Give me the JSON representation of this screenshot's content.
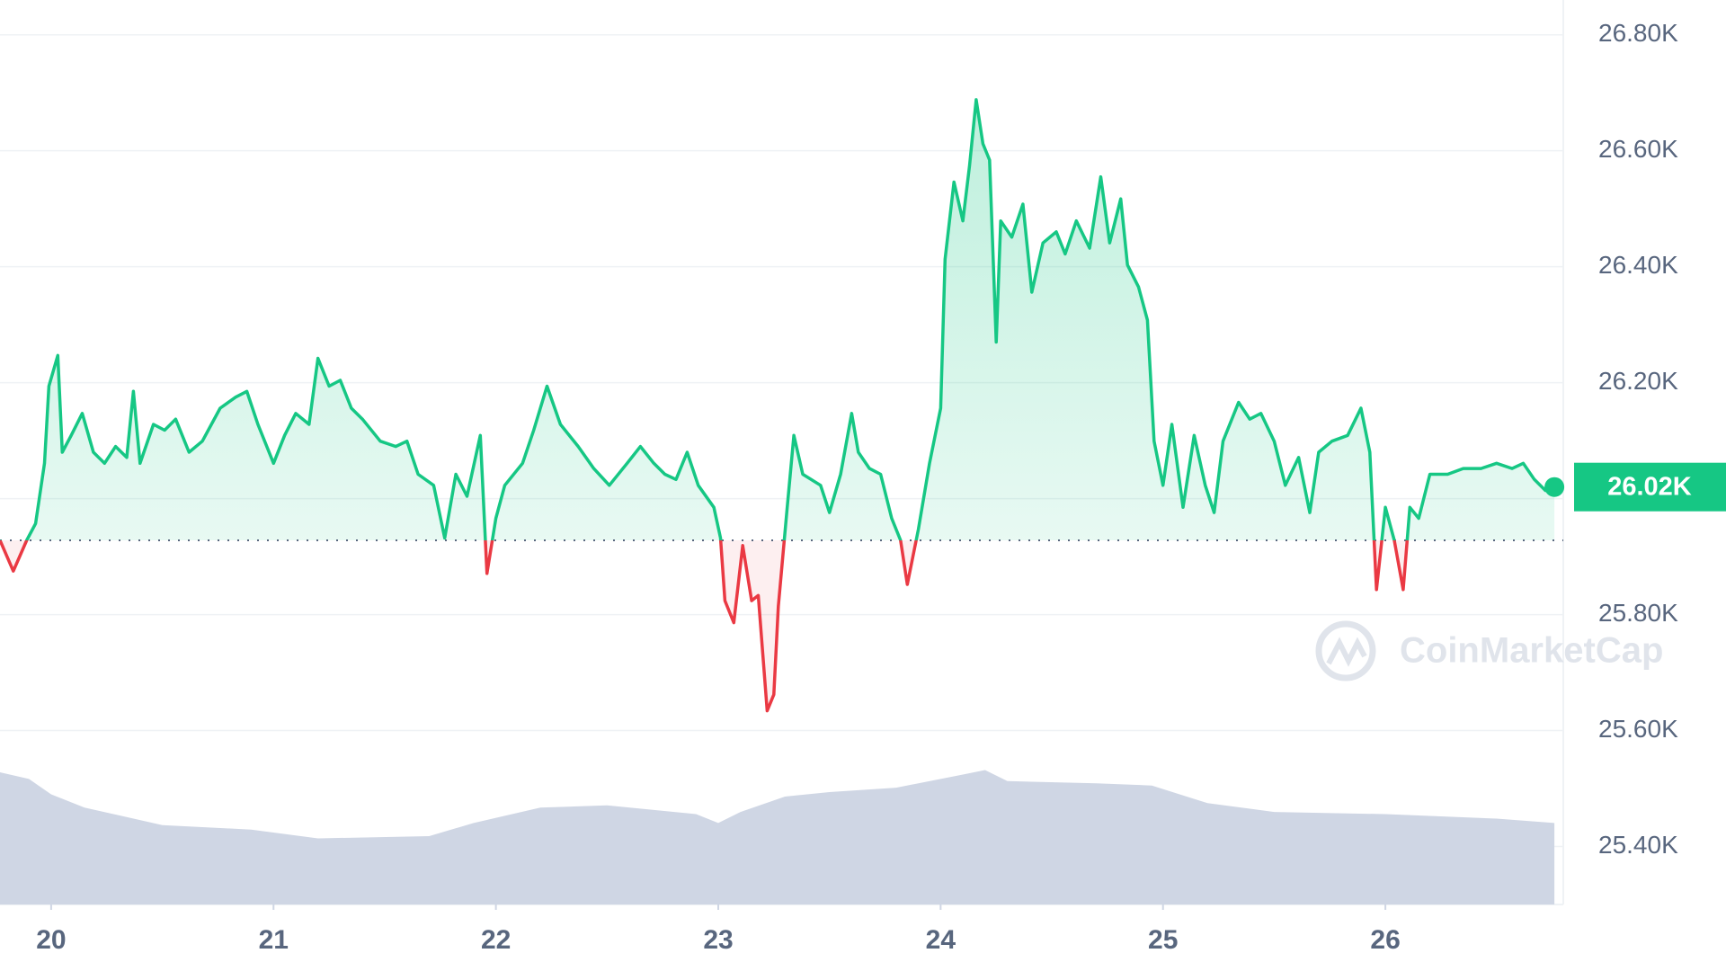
{
  "chart_data": {
    "type": "line",
    "x": [
      19.77,
      19.83,
      19.89,
      19.93,
      19.97,
      19.99,
      20.03,
      20.05,
      20.09,
      20.14,
      20.19,
      20.24,
      20.29,
      20.34,
      20.37,
      20.4,
      20.46,
      20.51,
      20.56,
      20.62,
      20.68,
      20.76,
      20.83,
      20.88,
      20.93,
      21.0,
      21.05,
      21.1,
      21.16,
      21.2,
      21.25,
      21.3,
      21.35,
      21.4,
      21.48,
      21.55,
      21.6,
      21.65,
      21.72,
      21.77,
      21.82,
      21.87,
      21.93,
      21.96,
      22.0,
      22.04,
      22.12,
      22.17,
      22.23,
      22.29,
      22.37,
      22.44,
      22.51,
      22.59,
      22.65,
      22.71,
      22.76,
      22.81,
      22.86,
      22.91,
      22.98,
      23.01,
      23.03,
      23.07,
      23.11,
      23.15,
      23.18,
      23.22,
      23.25,
      23.27,
      23.31,
      23.34,
      23.38,
      23.46,
      23.5,
      23.55,
      23.6,
      23.63,
      23.68,
      23.73,
      23.78,
      23.82,
      23.85,
      23.9,
      23.95,
      24.0,
      24.02,
      24.06,
      24.1,
      24.13,
      24.16,
      24.19,
      24.22,
      24.25,
      24.27,
      24.32,
      24.37,
      24.41,
      24.46,
      24.52,
      24.56,
      24.61,
      24.67,
      24.72,
      24.76,
      24.81,
      24.84,
      24.89,
      24.93,
      24.96,
      25.0,
      25.04,
      25.09,
      25.14,
      25.19,
      25.23,
      25.27,
      25.34,
      25.39,
      25.44,
      25.5,
      25.55,
      25.61,
      25.66,
      25.7,
      25.76,
      25.83,
      25.89,
      25.93,
      25.96,
      26.0,
      26.04,
      26.08,
      26.11,
      26.15,
      26.2,
      26.28,
      26.35,
      26.43,
      26.5,
      26.57,
      26.62,
      26.67,
      26.72,
      26.76
    ],
    "values": [
      25928,
      25875,
      25928,
      25957,
      26061,
      26194,
      26247,
      26080,
      26109,
      26147,
      26080,
      26061,
      26090,
      26071,
      26185,
      26061,
      26128,
      26118,
      26137,
      26080,
      26099,
      26156,
      26175,
      26185,
      26128,
      26061,
      26109,
      26147,
      26128,
      26242,
      26194,
      26204,
      26156,
      26137,
      26099,
      26090,
      26099,
      26042,
      26023,
      25932,
      26042,
      26004,
      26109,
      25871,
      25966,
      26023,
      26061,
      26118,
      26194,
      26128,
      26090,
      26052,
      26023,
      26061,
      26090,
      26061,
      26042,
      26033,
      26080,
      26023,
      25985,
      25932,
      25824,
      25786,
      25919,
      25824,
      25833,
      25634,
      25662,
      25814,
      25985,
      26109,
      26042,
      26023,
      25976,
      26042,
      26147,
      26080,
      26052,
      26042,
      25966,
      25928,
      25852,
      25947,
      26061,
      26156,
      26413,
      26546,
      26479,
      26574,
      26688,
      26612,
      26584,
      26270,
      26479,
      26451,
      26508,
      26356,
      26441,
      26460,
      26422,
      26479,
      26432,
      26555,
      26441,
      26517,
      26403,
      26365,
      26308,
      26099,
      26023,
      26128,
      25985,
      26109,
      26023,
      25976,
      26099,
      26166,
      26137,
      26147,
      26099,
      26023,
      26071,
      25976,
      26080,
      26099,
      26109,
      26156,
      26080,
      25843,
      25985,
      25928,
      25843,
      25985,
      25966,
      26042,
      26042,
      26052,
      26052,
      26061,
      26052,
      26061,
      26033,
      26014,
      26020
    ],
    "color_up": "#16c784",
    "color_down": "#ea3943",
    "baseline": 25928,
    "last_price": {
      "value": 26020,
      "label": "26.02K"
    },
    "volume": {
      "x": [
        19.77,
        19.9,
        20.0,
        20.15,
        20.5,
        20.9,
        21.2,
        21.7,
        21.9,
        22.2,
        22.5,
        22.9,
        23.0,
        23.1,
        23.3,
        23.5,
        23.8,
        24.0,
        24.1,
        24.2,
        24.3,
        24.7,
        24.95,
        25.2,
        25.5,
        26.0,
        26.5,
        26.76
      ],
      "values": [
        60,
        57,
        50,
        44,
        36,
        34,
        30,
        31,
        37,
        44,
        45,
        41,
        37,
        42,
        49,
        51,
        53,
        57,
        59,
        61,
        56,
        55,
        54,
        46,
        42,
        41,
        39,
        37
      ],
      "color": "#cfd6e4",
      "axis": "y2"
    },
    "y2lim": [
      0,
      100
    ],
    "xlim": [
      19.77,
      26.8
    ],
    "ylim": [
      25300,
      26860
    ],
    "xticks": [
      20,
      21,
      22,
      23,
      24,
      25,
      26
    ],
    "yticks": [
      {
        "value": 25400,
        "label": "25.40K"
      },
      {
        "value": 25600,
        "label": "25.60K"
      },
      {
        "value": 25800,
        "label": "25.80K"
      },
      {
        "value": 26000,
        "label": "26.00K"
      },
      {
        "value": 26200,
        "label": "26.20K"
      },
      {
        "value": 26400,
        "label": "26.40K"
      },
      {
        "value": 26600,
        "label": "26.60K"
      },
      {
        "value": 26800,
        "label": "26.80K"
      }
    ],
    "grid": true,
    "watermark": "CoinMarketCap"
  }
}
